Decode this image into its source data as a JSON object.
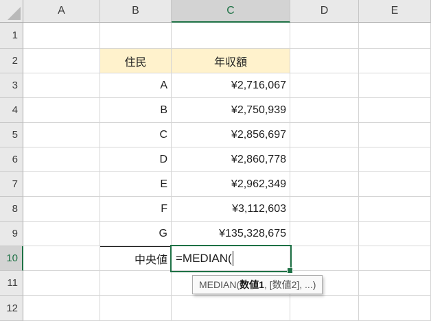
{
  "grid": {
    "column_headers": [
      "A",
      "B",
      "C",
      "D",
      "E"
    ],
    "row_headers": [
      "1",
      "2",
      "3",
      "4",
      "5",
      "6",
      "7",
      "8",
      "9",
      "10",
      "11",
      "12"
    ],
    "selected_column": "C",
    "selected_row": "10"
  },
  "table": {
    "headers": {
      "resident": "住民",
      "income": "年収額"
    },
    "rows": [
      {
        "resident": "A",
        "income": "¥2,716,067"
      },
      {
        "resident": "B",
        "income": "¥2,750,939"
      },
      {
        "resident": "C",
        "income": "¥2,856,697"
      },
      {
        "resident": "D",
        "income": "¥2,860,778"
      },
      {
        "resident": "E",
        "income": "¥2,962,349"
      },
      {
        "resident": "F",
        "income": "¥3,112,603"
      },
      {
        "resident": "G",
        "income": "¥135,328,675"
      }
    ],
    "summary_label": "中央値"
  },
  "edit_cell": {
    "ref": "C10",
    "text": "=MEDIAN("
  },
  "tooltip": {
    "prefix": "MEDIAN(",
    "arg1": "数値1",
    "rest": ", [数値2], ...)"
  },
  "colors": {
    "selection_green": "#1E7145",
    "header_fill": "#FFF2CC",
    "header_bg": "#E9E9E9",
    "selected_header_bg": "#D3D3D3",
    "gridline": "#D5D5D5"
  }
}
